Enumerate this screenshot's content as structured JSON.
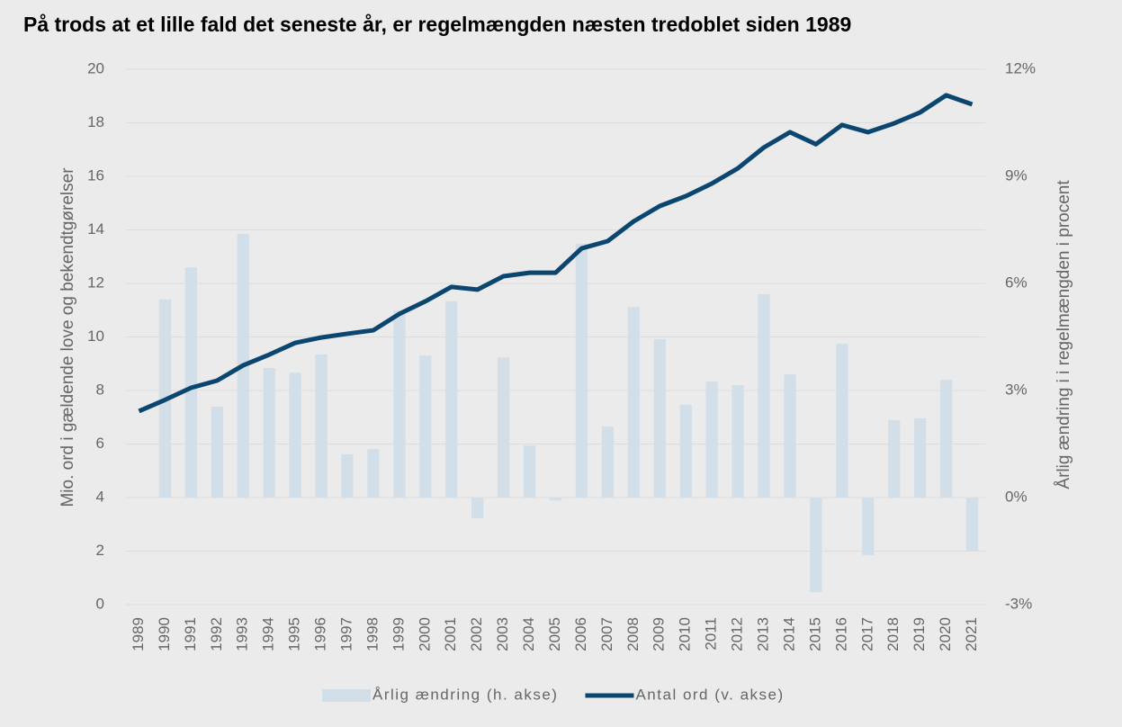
{
  "chart_data": {
    "type": "combo",
    "title": "På trods at et lille fald det seneste år, er regelmængden næsten tredoblet siden 1989",
    "y_label": "Mio. ord i gældende love og bekendtgørelser",
    "y2_label": "Årlig ændring i i regelmængden i procent",
    "categories": [
      "1989",
      "1990",
      "1991",
      "1992",
      "1993",
      "1994",
      "1995",
      "1996",
      "1997",
      "1998",
      "1999",
      "2000",
      "2001",
      "2002",
      "2003",
      "2004",
      "2005",
      "2006",
      "2007",
      "2008",
      "2009",
      "2010",
      "2011",
      "2012",
      "2013",
      "2014",
      "2015",
      "2016",
      "2017",
      "2018",
      "2019",
      "2020",
      "2021"
    ],
    "ylim": [
      0,
      20
    ],
    "yticks": [
      0,
      2,
      4,
      6,
      8,
      10,
      12,
      14,
      16,
      18,
      20
    ],
    "y2lim": [
      -3,
      12
    ],
    "y2ticks": [
      {
        "value": -3,
        "label": "-3%"
      },
      {
        "value": 0,
        "label": "0%"
      },
      {
        "value": 3,
        "label": "3%"
      },
      {
        "value": 6,
        "label": "6%"
      },
      {
        "value": 9,
        "label": "9%"
      },
      {
        "value": 12,
        "label": "12%"
      }
    ],
    "grid": true,
    "legend": "bottom",
    "series": [
      {
        "name": "Årlig ændring (h. akse)",
        "type": "bar",
        "axis": "y2",
        "color": "#d3dfe8",
        "values": [
          null,
          5.55,
          6.45,
          2.55,
          7.39,
          3.63,
          3.5,
          4.01,
          1.21,
          1.36,
          5.24,
          3.98,
          5.5,
          -0.58,
          3.93,
          1.46,
          -0.08,
          7.11,
          1.99,
          5.34,
          4.44,
          2.6,
          3.25,
          3.15,
          5.7,
          3.45,
          -2.65,
          4.31,
          -1.61,
          2.17,
          2.22,
          3.3,
          -1.49
        ]
      },
      {
        "name": "Antal ord (v. akse)",
        "type": "line",
        "color": "#0a4670",
        "values": [
          7.23,
          7.65,
          8.1,
          8.37,
          8.94,
          9.34,
          9.78,
          9.98,
          10.12,
          10.25,
          10.86,
          11.33,
          11.87,
          11.77,
          12.27,
          12.4,
          12.4,
          13.31,
          13.58,
          14.32,
          14.89,
          15.26,
          15.73,
          16.3,
          17.08,
          17.65,
          17.2,
          17.92,
          17.65,
          17.98,
          18.39,
          19.03,
          18.69
        ]
      }
    ]
  }
}
